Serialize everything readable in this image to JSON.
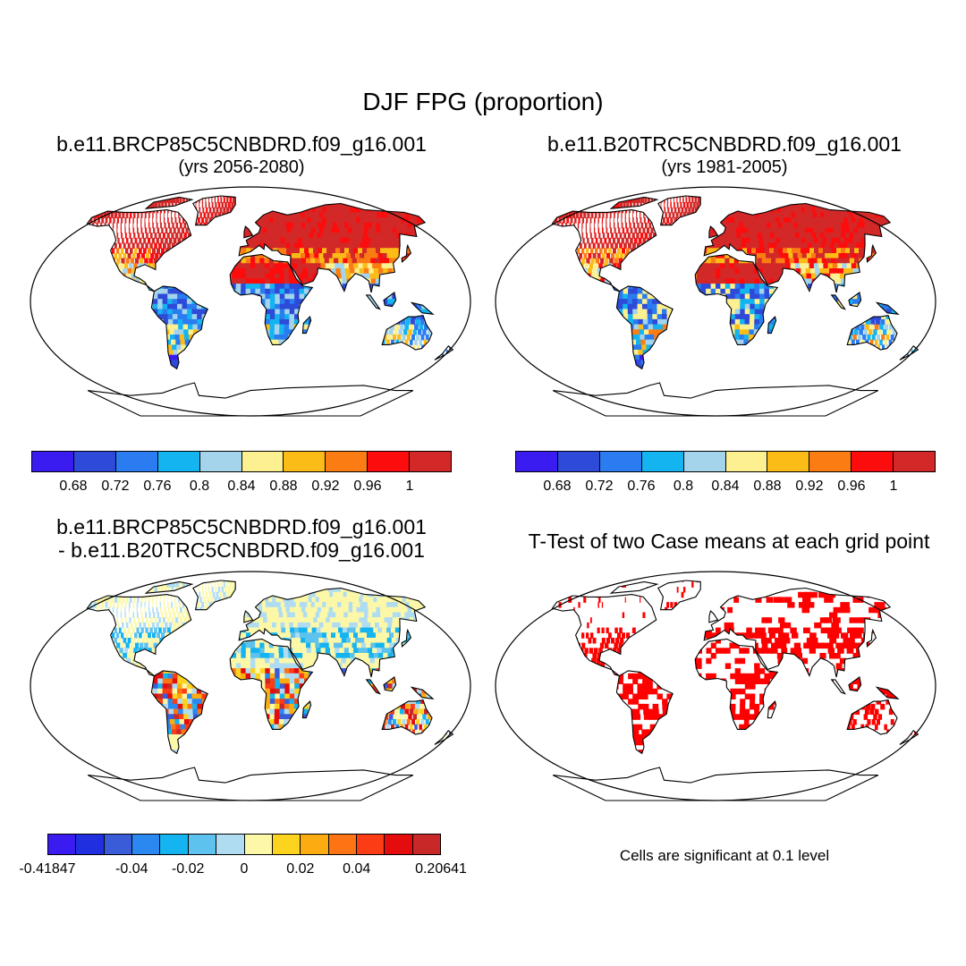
{
  "title": "DJF FPG (proportion)",
  "panels": [
    {
      "title": "b.e11.BRCP85C5CNBDRD.f09_g16.001",
      "subtitle": "(yrs 2056-2080)"
    },
    {
      "title": "b.e11.B20TRC5CNBDRD.f09_g16.001",
      "subtitle": "(yrs 1981-2005)"
    },
    {
      "title": "b.e11.BRCP85C5CNBDRD.f09_g16.001",
      "subtitle": "- b.e11.B20TRC5CNBDRD.f09_g16.001"
    },
    {
      "title": "T-Test of two Case means at each grid point",
      "subtitle": ""
    }
  ],
  "colorbars": {
    "abs": {
      "colors": [
        "#3a1cf0",
        "#2e4ad8",
        "#2a7cf0",
        "#14b4f0",
        "#a4d4ec",
        "#fcf090",
        "#fcbc18",
        "#fc7c14",
        "#fc0c0c",
        "#d22828"
      ],
      "ticks": [
        "0.68",
        "0.72",
        "0.76",
        "0.8",
        "0.84",
        "0.88",
        "0.92",
        "0.96",
        "1"
      ]
    },
    "diff": {
      "colors": [
        "#3a1cf0",
        "#2030e0",
        "#3a5cd8",
        "#2a88f0",
        "#14b4f0",
        "#5ec2ee",
        "#b0dcf2",
        "#fcf8a8",
        "#fcd420",
        "#fcac10",
        "#fc7414",
        "#fc3c14",
        "#e40c0c",
        "#c82828"
      ],
      "ticks": [
        "-0.41847",
        "-0.04",
        "-0.02",
        "0",
        "0.02",
        "0.04",
        "0.20641"
      ],
      "tick_boundaries": [
        0,
        3,
        5,
        7,
        9,
        11,
        14
      ]
    }
  },
  "significance_note": "Cells are significant at 0.1 level",
  "palette": {
    "land_outline": "#000000",
    "north_high": "#d22828",
    "mid": "#fcbc18",
    "tropic_low": "#2a7cf0",
    "diff_neutral": "#fcf8a8",
    "diff_neg": "#5ec2ee",
    "sig_cells": "#ff0000"
  }
}
